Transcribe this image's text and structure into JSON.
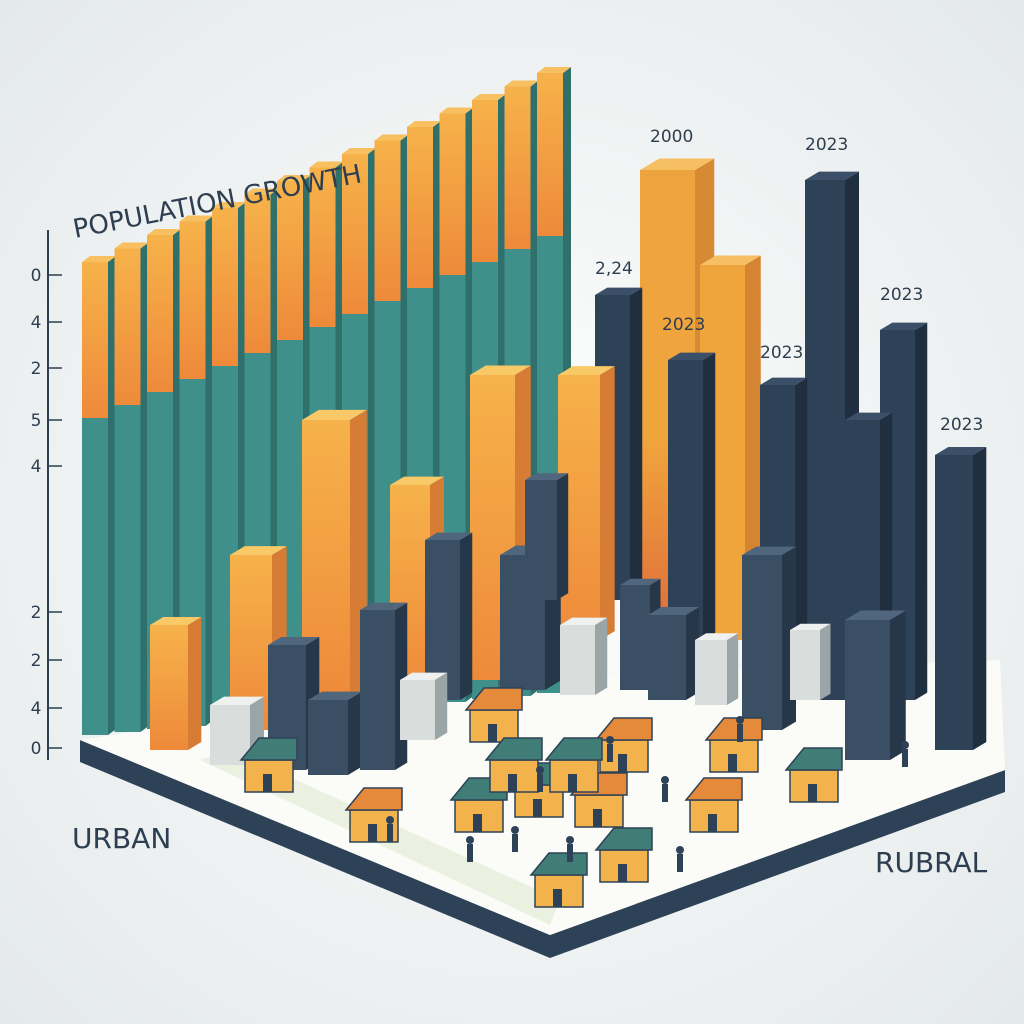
{
  "title": "POPULATION GROWTH",
  "axis_labels": [
    "0",
    "4",
    "2",
    "5",
    "4",
    "2",
    "2",
    "4",
    "0"
  ],
  "year_labels": [
    "2000",
    "2023",
    "2,24",
    "2023",
    "2023",
    "2023",
    "2023"
  ],
  "left_label": "URBAN",
  "right_label": "RUBRAL"
}
